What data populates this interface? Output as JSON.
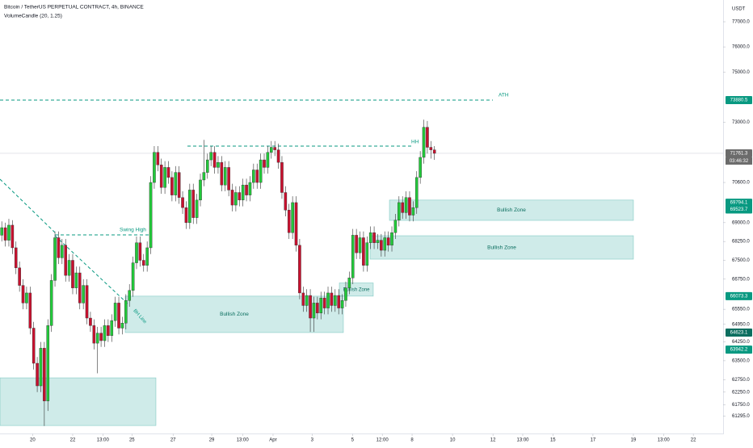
{
  "chart_data": {
    "type": "candlestick",
    "title": "Bitcoin / TetherUS PERPETUAL CONTRACT, 4h, BINANCE",
    "indicator": "VolumeCandle (20, 1.25)",
    "currency": "USDT",
    "up_color": "#22c93a",
    "down_color": "#c8102e",
    "ylim": [
      60250,
      77450
    ],
    "yticks": [
      {
        "value": 77000,
        "label": "77000.0"
      },
      {
        "value": 76000,
        "label": "76000.0"
      },
      {
        "value": 75000,
        "label": "75000.0"
      },
      {
        "value": 73000,
        "label": "73000.0"
      },
      {
        "value": 70600,
        "label": "70600.0"
      },
      {
        "value": 69000,
        "label": "69000.0"
      },
      {
        "value": 68250,
        "label": "68250.0"
      },
      {
        "value": 67500,
        "label": "67500.0"
      },
      {
        "value": 66750,
        "label": "66750.0"
      },
      {
        "value": 65550,
        "label": "65550.0"
      },
      {
        "value": 64950,
        "label": "64950.0"
      },
      {
        "value": 64250,
        "label": "64250.0"
      },
      {
        "value": 63500,
        "label": "63500.0"
      },
      {
        "value": 62750,
        "label": "62750.0"
      },
      {
        "value": 62250,
        "label": "62250.0"
      },
      {
        "value": 61750,
        "label": "61750.0"
      },
      {
        "value": 61295,
        "label": "61295.0"
      }
    ],
    "xlim": [
      -0.5,
      203.4
    ],
    "xticks": [
      {
        "value": 8.7,
        "label": "20"
      },
      {
        "value": 20,
        "label": "22"
      },
      {
        "value": 28.5,
        "label": "13:00"
      },
      {
        "value": 36.7,
        "label": "25"
      },
      {
        "value": 48.3,
        "label": "27"
      },
      {
        "value": 59.2,
        "label": "29"
      },
      {
        "value": 67.9,
        "label": "13:00"
      },
      {
        "value": 76.5,
        "label": "Apr"
      },
      {
        "value": 87.5,
        "label": "3"
      },
      {
        "value": 98.9,
        "label": "5"
      },
      {
        "value": 107.3,
        "label": "12:00"
      },
      {
        "value": 115.7,
        "label": "8"
      },
      {
        "value": 127.1,
        "label": "10"
      },
      {
        "value": 138.5,
        "label": "12"
      },
      {
        "value": 146.9,
        "label": "13:00"
      },
      {
        "value": 155.4,
        "label": "15"
      },
      {
        "value": 166.7,
        "label": "17"
      },
      {
        "value": 178.1,
        "label": "19"
      },
      {
        "value": 186.6,
        "label": "13:00"
      },
      {
        "value": 195,
        "label": "22"
      }
    ],
    "price_labels": [
      {
        "value": 73880.5,
        "color": "#089981"
      },
      {
        "value": 71761.3,
        "color": "#6b6b6b"
      },
      {
        "value": 69794.1,
        "color": "#089981"
      },
      {
        "value": 69523.7,
        "color": "#089981"
      },
      {
        "value": 66073.3,
        "color": "#089981"
      },
      {
        "value": 64623.1,
        "color": "#0b6e5f"
      },
      {
        "value": 63942.2,
        "color": "#089981"
      }
    ],
    "countdown": "03:46:32",
    "annotations": {
      "ath": "ATH",
      "hh": "HH",
      "swing_high": "Swing High",
      "bh_line": "BH Line"
    },
    "zones": [
      {
        "low": 60920,
        "high": 62820
      },
      {
        "low": 64623.1,
        "high": 66073.3,
        "label": "Bullish Zone"
      },
      {
        "low": 66073.3,
        "high": 66600,
        "label": "Bullish Zone"
      },
      {
        "low": 67546,
        "high": 68480,
        "label": "Bullish Zone"
      },
      {
        "low": 69090,
        "high": 69900,
        "label": "Bullish Zone"
      }
    ],
    "candles": [
      [
        68500,
        69050,
        68250,
        68800
      ],
      [
        68800,
        69000,
        68050,
        68300
      ],
      [
        68300,
        69150,
        68050,
        68900
      ],
      [
        68900,
        69100,
        67750,
        68000
      ],
      [
        68000,
        68250,
        66950,
        67200
      ],
      [
        67200,
        67450,
        66250,
        66500
      ],
      [
        66500,
        66750,
        65550,
        65800
      ],
      [
        65800,
        66450,
        65550,
        66200
      ],
      [
        66200,
        66450,
        64550,
        64800
      ],
      [
        64800,
        65050,
        63150,
        63400
      ],
      [
        63400,
        63650,
        62250,
        62500
      ],
      [
        62500,
        64250,
        62250,
        64000
      ],
      [
        64000,
        64250,
        60900,
        61900
      ],
      [
        61900,
        65150,
        61500,
        64900
      ],
      [
        64900,
        66950,
        64650,
        66700
      ],
      [
        66700,
        68650,
        66450,
        68400
      ],
      [
        68400,
        68650,
        67350,
        67600
      ],
      [
        67600,
        68350,
        67350,
        68100
      ],
      [
        68100,
        68350,
        66650,
        66900
      ],
      [
        66900,
        67750,
        66650,
        67500
      ],
      [
        67500,
        67750,
        66150,
        66400
      ],
      [
        66400,
        67250,
        66150,
        67000
      ],
      [
        67000,
        67250,
        65550,
        65800
      ],
      [
        65800,
        66750,
        65550,
        66500
      ],
      [
        66500,
        66750,
        64950,
        65200
      ],
      [
        65200,
        65450,
        64650,
        64900
      ],
      [
        64900,
        65150,
        63950,
        64200
      ],
      [
        64200,
        64850,
        63000,
        64600
      ],
      [
        64600,
        64850,
        64050,
        64300
      ],
      [
        64300,
        65150,
        64050,
        64900
      ],
      [
        64900,
        65150,
        64250,
        64500
      ],
      [
        64500,
        65350,
        64250,
        65100
      ],
      [
        65100,
        66050,
        64850,
        65800
      ],
      [
        65800,
        66050,
        64550,
        64800
      ],
      [
        64800,
        65250,
        64550,
        65000
      ],
      [
        65000,
        66150,
        64750,
        65900
      ],
      [
        65900,
        66550,
        65650,
        66300
      ],
      [
        66300,
        67650,
        66050,
        67400
      ],
      [
        67400,
        68450,
        67150,
        68200
      ],
      [
        68200,
        68450,
        67250,
        67500
      ],
      [
        67500,
        67750,
        67050,
        67300
      ],
      [
        67300,
        68250,
        67050,
        68000
      ],
      [
        68000,
        70850,
        67750,
        70600
      ],
      [
        70600,
        72050,
        70350,
        71800
      ],
      [
        71800,
        72050,
        71050,
        71300
      ],
      [
        71300,
        71550,
        70150,
        70400
      ],
      [
        70400,
        71450,
        70150,
        71200
      ],
      [
        71200,
        71450,
        70550,
        70800
      ],
      [
        70800,
        71050,
        69850,
        70100
      ],
      [
        70100,
        71250,
        69850,
        71000
      ],
      [
        71000,
        71250,
        69750,
        70000
      ],
      [
        70000,
        70250,
        69350,
        69600
      ],
      [
        69600,
        69850,
        68750,
        69000
      ],
      [
        69000,
        70550,
        68750,
        70300
      ],
      [
        70300,
        70550,
        68950,
        69200
      ],
      [
        69200,
        70150,
        68950,
        69900
      ],
      [
        69900,
        70950,
        69650,
        70700
      ],
      [
        70700,
        72300,
        70450,
        71000
      ],
      [
        71000,
        71750,
        70750,
        71500
      ],
      [
        71500,
        72050,
        71250,
        71800
      ],
      [
        71800,
        72050,
        70950,
        71200
      ],
      [
        71200,
        71650,
        70950,
        71400
      ],
      [
        71400,
        71650,
        70250,
        70500
      ],
      [
        70500,
        71450,
        70250,
        71200
      ],
      [
        71200,
        71450,
        70050,
        70300
      ],
      [
        70300,
        70550,
        69450,
        69700
      ],
      [
        69700,
        70450,
        69450,
        70200
      ],
      [
        70200,
        70450,
        69650,
        69900
      ],
      [
        69900,
        70750,
        69650,
        70500
      ],
      [
        70500,
        70750,
        69850,
        70100
      ],
      [
        70100,
        70850,
        69850,
        70600
      ],
      [
        70600,
        71350,
        70350,
        71100
      ],
      [
        71100,
        71350,
        70350,
        70600
      ],
      [
        70600,
        71750,
        70350,
        71500
      ],
      [
        71500,
        71750,
        70950,
        71200
      ],
      [
        71200,
        72050,
        70950,
        71800
      ],
      [
        71800,
        72250,
        71550,
        72000
      ],
      [
        72000,
        72250,
        71650,
        71900
      ],
      [
        71900,
        72150,
        71150,
        71400
      ],
      [
        71400,
        71650,
        69950,
        70200
      ],
      [
        70200,
        70450,
        69250,
        69500
      ],
      [
        69500,
        69750,
        68350,
        68600
      ],
      [
        68600,
        70050,
        68350,
        69800
      ],
      [
        69800,
        70050,
        67850,
        68100
      ],
      [
        68100,
        68350,
        65950,
        66200
      ],
      [
        66200,
        66450,
        65450,
        65700
      ],
      [
        65700,
        66350,
        65450,
        66100
      ],
      [
        66100,
        66350,
        64650,
        65200
      ],
      [
        65200,
        66050,
        64650,
        65800
      ],
      [
        65800,
        66050,
        65150,
        65400
      ],
      [
        65400,
        66250,
        65150,
        66000
      ],
      [
        66000,
        66250,
        65350,
        65600
      ],
      [
        65600,
        66450,
        65350,
        66200
      ],
      [
        66200,
        66450,
        65450,
        65700
      ],
      [
        65700,
        66350,
        65450,
        66100
      ],
      [
        66100,
        66350,
        65350,
        65600
      ],
      [
        65600,
        66150,
        65350,
        65900
      ],
      [
        65900,
        66650,
        65650,
        66400
      ],
      [
        66400,
        67050,
        66150,
        66800
      ],
      [
        66800,
        68750,
        66550,
        68500
      ],
      [
        68500,
        68750,
        67550,
        67800
      ],
      [
        67800,
        68650,
        67550,
        68400
      ],
      [
        68400,
        68650,
        67050,
        67300
      ],
      [
        67300,
        68450,
        67050,
        68200
      ],
      [
        68200,
        68850,
        67950,
        68600
      ],
      [
        68600,
        68850,
        67950,
        68200
      ],
      [
        68200,
        68550,
        67950,
        68300
      ],
      [
        68300,
        68550,
        67650,
        67900
      ],
      [
        67900,
        68650,
        67650,
        68400
      ],
      [
        68400,
        68650,
        67850,
        68100
      ],
      [
        68100,
        68850,
        67850,
        68600
      ],
      [
        68600,
        69350,
        68350,
        69100
      ],
      [
        69100,
        70050,
        68850,
        69800
      ],
      [
        69800,
        70050,
        69150,
        69400
      ],
      [
        69400,
        70250,
        69150,
        70000
      ],
      [
        70000,
        70250,
        69050,
        69300
      ],
      [
        69300,
        69850,
        69050,
        69600
      ],
      [
        69600,
        71050,
        69350,
        70800
      ],
      [
        70800,
        71850,
        70550,
        71600
      ],
      [
        71600,
        73100,
        71350,
        72800
      ],
      [
        72800,
        73050,
        71750,
        72000
      ],
      [
        72000,
        72250,
        71550,
        71900
      ],
      [
        71900,
        72050,
        71500,
        71761.3
      ]
    ]
  }
}
